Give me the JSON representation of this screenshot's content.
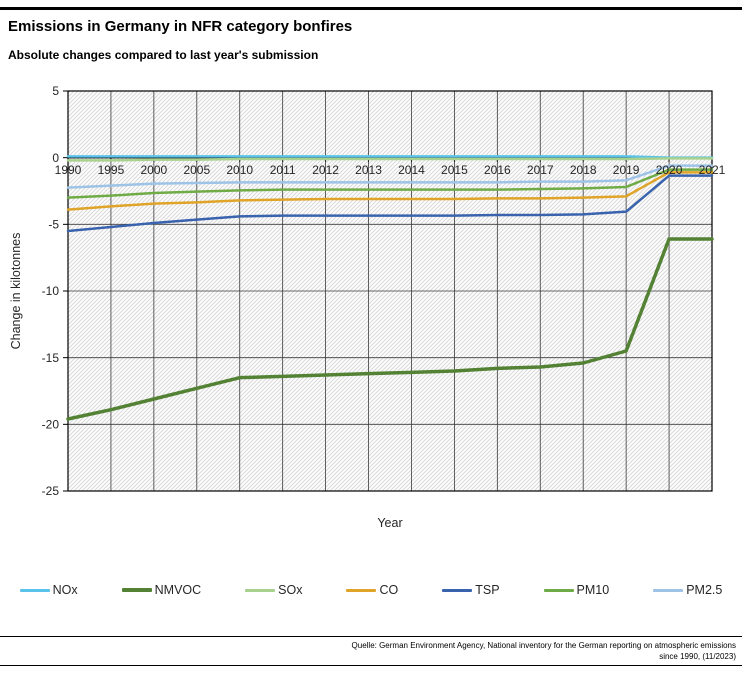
{
  "page": {
    "title": "Emissions in Germany in NFR category bonfires",
    "subtitle": "Absolute changes compared to last year's submission",
    "source_line1": "Quelle: German Environment Agency, National inventory for the German reporting on atmospheric emissions",
    "source_line2": "since 1990, (11/2023)"
  },
  "chart_data": {
    "type": "line",
    "title": "Emissions in Germany in NFR category bonfires",
    "subtitle": "Absolute changes compared to last year's submission",
    "xlabel": "Year",
    "ylabel": "Change in kilotonnes",
    "ylim": [
      -25,
      5
    ],
    "ytick_step": 5,
    "ytick_labels": [
      "5",
      "0",
      "-5",
      "-10",
      "-15",
      "-20",
      "-25"
    ],
    "grid": "both",
    "plot_background": "diagonal-hatch",
    "legend_position": "bottom",
    "axis_text_color": "#262626",
    "categories": [
      "1990",
      "1995",
      "2000",
      "2005",
      "2010",
      "2011",
      "2012",
      "2013",
      "2014",
      "2015",
      "2016",
      "2017",
      "2018",
      "2019",
      "2020",
      "2021"
    ],
    "series": [
      {
        "name": "NOx",
        "color": "#5BC3EA",
        "line_width": 2.5,
        "values": [
          0.1,
          0.1,
          0.1,
          0.1,
          0.1,
          0.1,
          0.1,
          0.1,
          0.1,
          0.1,
          0.1,
          0.1,
          0.1,
          0.1,
          0.0,
          0.0
        ]
      },
      {
        "name": "NMVOC",
        "color": "#548235",
        "line_width": 3.5,
        "values": [
          -19.6,
          -18.9,
          -18.1,
          -17.3,
          -16.5,
          -16.4,
          -16.3,
          -16.2,
          -16.1,
          -16.0,
          -15.8,
          -15.7,
          -15.4,
          -14.5,
          -6.1,
          -6.1
        ]
      },
      {
        "name": "SOx",
        "color": "#A9D18E",
        "line_width": 2.5,
        "values": [
          -0.2,
          -0.2,
          -0.15,
          -0.15,
          -0.1,
          -0.1,
          -0.1,
          -0.1,
          -0.1,
          -0.1,
          -0.1,
          -0.1,
          -0.1,
          -0.1,
          -0.05,
          -0.05
        ]
      },
      {
        "name": "CO",
        "color": "#DFA428",
        "line_width": 2.5,
        "values": [
          -3.9,
          -3.65,
          -3.45,
          -3.35,
          -3.2,
          -3.15,
          -3.1,
          -3.1,
          -3.1,
          -3.1,
          -3.05,
          -3.05,
          -3.0,
          -2.9,
          -1.1,
          -1.1
        ]
      },
      {
        "name": "TSP",
        "color": "#3A63AE",
        "line_width": 2.5,
        "values": [
          -5.5,
          -5.2,
          -4.9,
          -4.65,
          -4.4,
          -4.35,
          -4.35,
          -4.35,
          -4.35,
          -4.35,
          -4.3,
          -4.3,
          -4.25,
          -4.05,
          -1.35,
          -1.35
        ]
      },
      {
        "name": "PM10",
        "color": "#6FAC47",
        "line_width": 2.5,
        "values": [
          -3.0,
          -2.85,
          -2.65,
          -2.55,
          -2.45,
          -2.4,
          -2.4,
          -2.4,
          -2.4,
          -2.4,
          -2.4,
          -2.35,
          -2.3,
          -2.2,
          -0.9,
          -0.9
        ]
      },
      {
        "name": "PM2.5",
        "color": "#9DC3E6",
        "line_width": 2.5,
        "values": [
          -2.25,
          -2.1,
          -1.95,
          -1.9,
          -1.85,
          -1.85,
          -1.85,
          -1.85,
          -1.85,
          -1.85,
          -1.85,
          -1.8,
          -1.8,
          -1.7,
          -0.6,
          -0.6
        ]
      }
    ]
  }
}
